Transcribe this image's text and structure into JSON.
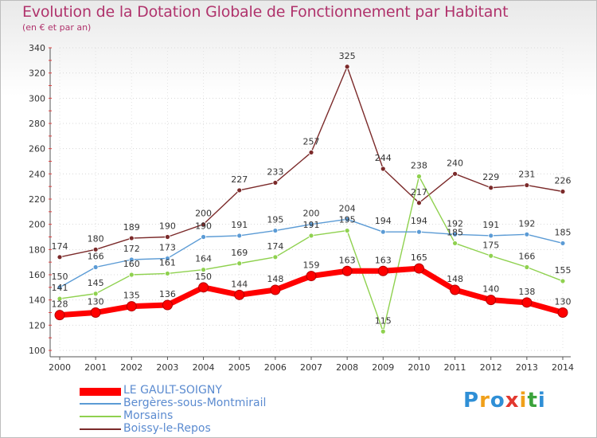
{
  "chart_data": {
    "type": "line",
    "title": "Evolution de la Dotation Globale de Fonctionnement par Habitant",
    "subtitle": "(en € et par an)",
    "x": [
      "2000",
      "2001",
      "2002",
      "2003",
      "2004",
      "2005",
      "2006",
      "2007",
      "2008",
      "2009",
      "2010",
      "2011",
      "2012",
      "2013",
      "2014"
    ],
    "ylim": [
      100,
      340
    ],
    "yticks": [
      100,
      120,
      140,
      160,
      180,
      200,
      220,
      240,
      260,
      280,
      300,
      320,
      340
    ],
    "series": [
      {
        "name": "LE GAULT-SOIGNY",
        "color": "#ff0000",
        "values": [
          128,
          130,
          135,
          136,
          150,
          144,
          148,
          159,
          163,
          163,
          165,
          148,
          140,
          138,
          130
        ]
      },
      {
        "name": "Bergères-sous-Montmirail",
        "color": "#5b9bd5",
        "values": [
          150,
          166,
          172,
          173,
          190,
          191,
          195,
          200,
          204,
          194,
          194,
          192,
          191,
          192,
          185
        ]
      },
      {
        "name": "Morsains",
        "color": "#8fd14f",
        "values": [
          141,
          145,
          160,
          161,
          164,
          169,
          174,
          191,
          195,
          115,
          238,
          185,
          175,
          166,
          155
        ]
      },
      {
        "name": "Boissy-le-Repos",
        "color": "#7b2a2a",
        "values": [
          174,
          180,
          189,
          190,
          200,
          227,
          233,
          257,
          325,
          244,
          217,
          240,
          229,
          231,
          226
        ]
      }
    ],
    "legend_position": "bottom-left"
  },
  "legend": [
    {
      "label": "LE GAULT-SOIGNY",
      "color": "#ff0000"
    },
    {
      "label": "Bergères-sous-Montmirail",
      "color": "#5b9bd5"
    },
    {
      "label": "Morsains",
      "color": "#8fd14f"
    },
    {
      "label": "Boissy-le-Repos",
      "color": "#7b2a2a"
    }
  ],
  "logo": {
    "p": "P",
    "r": "r",
    "o": "o",
    "x": "x",
    "i1": "i",
    "t": "t",
    "i2": "i"
  }
}
